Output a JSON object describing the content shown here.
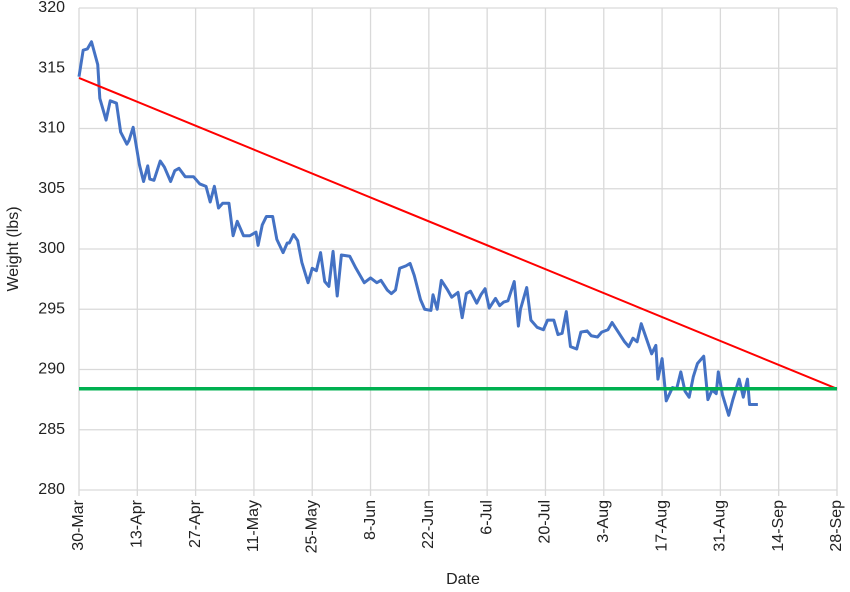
{
  "chart_data": {
    "type": "line",
    "x_label": "Date",
    "y_label": "Weight (lbs)",
    "xlim": [
      0,
      182
    ],
    "ylim": [
      280,
      320
    ],
    "xticks": [
      {
        "value": 0,
        "label": "30-Mar"
      },
      {
        "value": 14,
        "label": "13-Apr"
      },
      {
        "value": 28,
        "label": "27-Apr"
      },
      {
        "value": 42,
        "label": "11-May"
      },
      {
        "value": 56,
        "label": "25-May"
      },
      {
        "value": 70,
        "label": "8-Jun"
      },
      {
        "value": 84,
        "label": "22-Jun"
      },
      {
        "value": 98,
        "label": "6-Jul"
      },
      {
        "value": 112,
        "label": "20-Jul"
      },
      {
        "value": 126,
        "label": "3-Aug"
      },
      {
        "value": 140,
        "label": "17-Aug"
      },
      {
        "value": 154,
        "label": "31-Aug"
      },
      {
        "value": 168,
        "label": "14-Sep"
      },
      {
        "value": 182,
        "label": "28-Sep"
      }
    ],
    "yticks": [
      280,
      285,
      290,
      295,
      300,
      305,
      310,
      315,
      320
    ],
    "grid": true,
    "series": [
      {
        "color": "#4472c4",
        "width": 3,
        "x": [
          0,
          1,
          2,
          3,
          4.5,
          5,
          6.5,
          7.5,
          9,
          10,
          11.5,
          12,
          13,
          14.5,
          15.5,
          16.5,
          17,
          18,
          19.5,
          20.5,
          22,
          23,
          24,
          25.5,
          27.5,
          29,
          30.5,
          31.5,
          32.5,
          33.5,
          34.5,
          36,
          37,
          38,
          39.5,
          41,
          42.5,
          43,
          44,
          45,
          46.5,
          47.5,
          49,
          50,
          50.5,
          51.5,
          52.5,
          53.5,
          55,
          56,
          57,
          58,
          59,
          60,
          61,
          62,
          63,
          65,
          66.5,
          68.5,
          70,
          71.5,
          72.5,
          74,
          75,
          76,
          77,
          78.5,
          79.5,
          80.5,
          82,
          83,
          84.5,
          85,
          86,
          87,
          88.5,
          89.5,
          91,
          92,
          93,
          94,
          95.5,
          96.5,
          97.5,
          98.5,
          100,
          101,
          102,
          103,
          104.5,
          105.5,
          106,
          107.5,
          108.5,
          110,
          111.5,
          112.5,
          114,
          115,
          116,
          117,
          118,
          119.5,
          120.5,
          122,
          123,
          124.5,
          125.5,
          127,
          128,
          129.5,
          131,
          132,
          133,
          134,
          135,
          136,
          137.5,
          138.5,
          139,
          140,
          141,
          142.5,
          143.5,
          144.5,
          145.5,
          146.5,
          147.5,
          148.5,
          150,
          151,
          152,
          153,
          153.5,
          154.5,
          156,
          157,
          158.5,
          159.5,
          160.5,
          161,
          163
        ],
        "values": [
          314.3,
          316.5,
          316.6,
          317.2,
          315.3,
          312.5,
          310.7,
          312.3,
          312.1,
          309.7,
          308.7,
          309,
          310.1,
          307,
          305.6,
          306.9,
          305.8,
          305.7,
          307.3,
          306.8,
          305.6,
          306.5,
          306.7,
          306,
          306,
          305.4,
          305.2,
          303.9,
          305.2,
          303.4,
          303.8,
          303.8,
          301.1,
          302.3,
          301.1,
          301.1,
          301.4,
          300.3,
          302,
          302.7,
          302.7,
          300.8,
          299.7,
          300.5,
          300.5,
          301.2,
          300.7,
          298.9,
          297.2,
          298.4,
          298.2,
          299.7,
          297.3,
          296.9,
          299.8,
          296.1,
          299.5,
          299.4,
          298.4,
          297.2,
          297.6,
          297.2,
          297.4,
          296.6,
          296.3,
          296.6,
          298.4,
          298.6,
          298.8,
          297.8,
          295.8,
          295,
          294.9,
          296.2,
          295,
          297.4,
          296.6,
          296,
          296.4,
          294.3,
          296.3,
          296.5,
          295.5,
          296.2,
          296.7,
          295.1,
          295.9,
          295.3,
          295.6,
          295.7,
          297.3,
          293.6,
          295,
          296.8,
          294.1,
          293.5,
          293.3,
          294.1,
          294.1,
          292.9,
          293,
          294.8,
          291.9,
          291.7,
          293.1,
          293.2,
          292.8,
          292.7,
          293.1,
          293.3,
          293.9,
          293.1,
          292.3,
          291.9,
          292.6,
          292.3,
          293.8,
          292.8,
          291.3,
          292,
          289.2,
          290.9,
          287.4,
          288.5,
          288.4,
          289.8,
          288.2,
          287.7,
          289.4,
          290.5,
          291.1,
          287.5,
          288.3,
          288,
          289.8,
          287.9,
          286.2,
          287.5,
          289.2,
          287.7,
          289.2,
          287.1,
          287.1
        ]
      },
      {
        "color": "#ff0000",
        "width": 2,
        "x": [
          0,
          182
        ],
        "values": [
          314.2,
          288.4
        ]
      },
      {
        "color": "#00b050",
        "width": 3.5,
        "x": [
          0,
          182
        ],
        "values": [
          288.4,
          288.4
        ]
      }
    ]
  }
}
